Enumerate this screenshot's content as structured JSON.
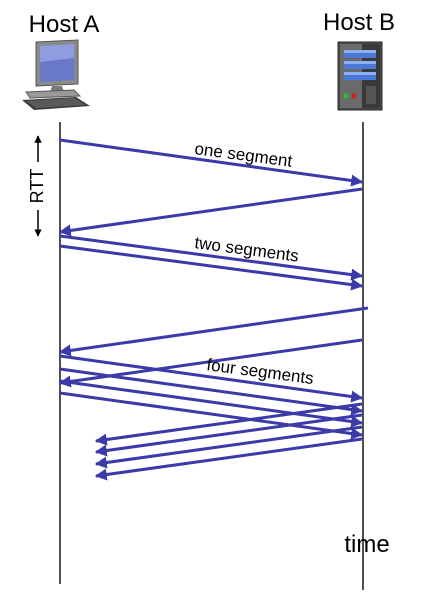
{
  "hosts": {
    "a_label": "Host A",
    "b_label": "Host B",
    "a_icon": "desktop-computer-icon",
    "b_icon": "server-tower-icon"
  },
  "labels": {
    "rtt": "RTT",
    "time": "time",
    "one_segment": "one segment",
    "two_segments": "two segments",
    "four_segments": "four segments"
  },
  "colors": {
    "arrow": "#3a3aa8",
    "timeline": "#505050",
    "server_led_green": "#2fbf3a",
    "server_led_red": "#d42020",
    "server_drive": "#4a78d8"
  }
}
